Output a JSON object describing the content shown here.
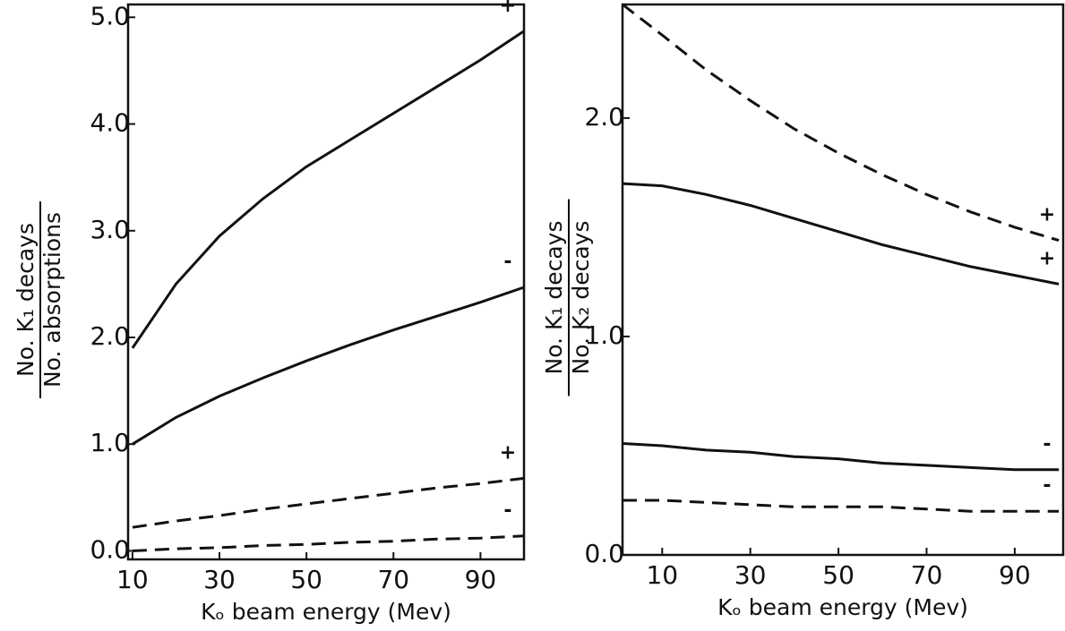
{
  "chart_data": [
    {
      "type": "line",
      "y_label_numerator": "No. K₁ decays",
      "y_label_denominator": "No. absorptions",
      "x_label": "Kₒ beam energy (Mev)",
      "x": [
        10,
        20,
        30,
        40,
        50,
        60,
        70,
        80,
        90,
        100
      ],
      "series": [
        {
          "name": "+",
          "color": "#111111",
          "style": "solid",
          "values": [
            1.9,
            2.5,
            2.95,
            3.3,
            3.6,
            3.85,
            4.1,
            4.35,
            4.6,
            4.87
          ]
        },
        {
          "name": "-",
          "color": "#111111",
          "style": "solid",
          "values": [
            1.0,
            1.25,
            1.45,
            1.62,
            1.78,
            1.93,
            2.07,
            2.2,
            2.33,
            2.47
          ]
        },
        {
          "name": "+",
          "color": "#111111",
          "style": "dashed",
          "values": [
            0.22,
            0.28,
            0.33,
            0.39,
            0.44,
            0.49,
            0.54,
            0.59,
            0.63,
            0.68
          ]
        },
        {
          "name": "-",
          "color": "#111111",
          "style": "dashed",
          "values": [
            0.0,
            0.02,
            0.03,
            0.05,
            0.06,
            0.08,
            0.09,
            0.11,
            0.12,
            0.14
          ]
        }
      ],
      "xlim": [
        9,
        100
      ],
      "xticks": [
        10,
        30,
        50,
        70,
        90
      ],
      "ylim": [
        -0.08,
        5.12
      ],
      "yticks": [
        {
          "value": 0,
          "label": "0.0"
        },
        {
          "value": 1,
          "label": "1.0"
        },
        {
          "value": 2,
          "label": "2.0"
        },
        {
          "value": 3,
          "label": "3.0"
        },
        {
          "value": 4,
          "label": "4.0"
        },
        {
          "value": 5,
          "label": "5.0"
        }
      ]
    },
    {
      "type": "line",
      "y_label_numerator": "No. K₁ decays",
      "y_label_denominator": "No. K₂ decays",
      "x_label": "Kₒ beam energy (Mev)",
      "x": [
        1,
        10,
        20,
        30,
        40,
        50,
        60,
        70,
        80,
        90,
        100
      ],
      "series": [
        {
          "name": "+",
          "color": "#111111",
          "style": "dashed",
          "values": [
            2.52,
            2.38,
            2.22,
            2.08,
            1.95,
            1.84,
            1.74,
            1.65,
            1.57,
            1.5,
            1.44
          ]
        },
        {
          "name": "+",
          "color": "#111111",
          "style": "solid",
          "values": [
            1.7,
            1.69,
            1.65,
            1.6,
            1.54,
            1.48,
            1.42,
            1.37,
            1.32,
            1.28,
            1.24
          ]
        },
        {
          "name": "-",
          "color": "#111111",
          "style": "solid",
          "values": [
            0.51,
            0.5,
            0.48,
            0.47,
            0.45,
            0.44,
            0.42,
            0.41,
            0.4,
            0.39,
            0.39
          ]
        },
        {
          "name": "-",
          "color": "#111111",
          "style": "dashed",
          "values": [
            0.25,
            0.25,
            0.24,
            0.23,
            0.22,
            0.22,
            0.22,
            0.21,
            0.2,
            0.2,
            0.2
          ]
        }
      ],
      "xlim": [
        1,
        101
      ],
      "xticks": [
        10,
        30,
        50,
        70,
        90
      ],
      "ylim": [
        0,
        2.52
      ],
      "yticks": [
        {
          "value": 0,
          "label": "0.0"
        },
        {
          "value": 1,
          "label": "1.0"
        },
        {
          "value": 2,
          "label": "2.0"
        }
      ]
    }
  ]
}
